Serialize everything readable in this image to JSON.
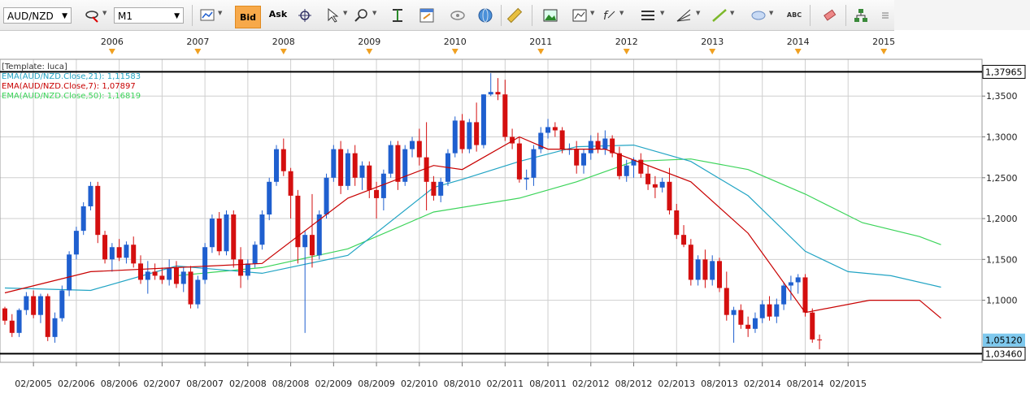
{
  "toolbar": {
    "symbol": "AUD/NZD",
    "timeframe": "M1",
    "bid_label": "Bid",
    "ask_label": "Ask",
    "abc_label": "ABC",
    "icons": [
      "chart-type-icon",
      "bid-ask-icon",
      "crosshair-icon",
      "cursor-icon",
      "zoom-icon",
      "center-icon",
      "template-icon",
      "eye-icon",
      "globe-icon",
      "ruler-icon",
      "picture-icon",
      "screenshot-icon",
      "indicator-icon",
      "levels-icon",
      "fibonacci-icon",
      "line-icon",
      "ellipse-icon",
      "text-icon",
      "eraser-icon",
      "tree-icon",
      "options-icon"
    ]
  },
  "colors": {
    "up": "#1f5fcf",
    "down": "#d40f0f",
    "ema21": "#22a4c4",
    "ema7": "#c80000",
    "ema50": "#3cd45a",
    "grid": "#cfcfcf",
    "price_label_bg": "#7fc9ee"
  },
  "chart_data": {
    "type": "candlestick",
    "template_label": "[Template: luca]",
    "legend": [
      {
        "name": "EMA(AUD/NZD.Close,21)",
        "value": "1,11583",
        "color": "#22a4c4"
      },
      {
        "name": "EMA(AUD/NZD.Close,7)",
        "value": "1,07897",
        "color": "#c80000"
      },
      {
        "name": "EMA(AUD/NZD.Close,50)",
        "value": "1,16819",
        "color": "#3cd45a"
      }
    ],
    "ylim": [
      1.024,
      1.395
    ],
    "yticks": [
      "1,3500",
      "1,3000",
      "1,2500",
      "1,2000",
      "1,1500",
      "1,1000"
    ],
    "ytick_values": [
      1.35,
      1.3,
      1.25,
      1.2,
      1.15,
      1.1
    ],
    "years": [
      "2006",
      "2007",
      "2008",
      "2009",
      "2010",
      "2011",
      "2012",
      "2013",
      "2014",
      "2015"
    ],
    "xticks": [
      "02/2005",
      "02/2006",
      "08/2006",
      "02/2007",
      "08/2007",
      "02/2008",
      "08/2008",
      "02/2009",
      "08/2009",
      "02/2010",
      "08/2010",
      "02/2011",
      "08/2011",
      "02/2012",
      "08/2012",
      "02/2013",
      "08/2013",
      "02/2014",
      "08/2014",
      "02/2015"
    ],
    "hlines": [
      {
        "value": 1.37965,
        "label": "1,37965"
      },
      {
        "value": 1.0346,
        "label": "1,03460"
      }
    ],
    "current_price": {
      "value": 1.0512,
      "label": "1,05120"
    },
    "candles": [
      [
        1.09,
        1.092,
        1.07,
        1.075
      ],
      [
        1.075,
        1.083,
        1.055,
        1.06
      ],
      [
        1.06,
        1.09,
        1.055,
        1.088
      ],
      [
        1.088,
        1.11,
        1.082,
        1.105
      ],
      [
        1.105,
        1.112,
        1.078,
        1.082
      ],
      [
        1.082,
        1.108,
        1.072,
        1.105
      ],
      [
        1.105,
        1.108,
        1.05,
        1.055
      ],
      [
        1.055,
        1.085,
        1.048,
        1.078
      ],
      [
        1.078,
        1.118,
        1.074,
        1.112
      ],
      [
        1.112,
        1.16,
        1.105,
        1.156
      ],
      [
        1.156,
        1.19,
        1.15,
        1.185
      ],
      [
        1.185,
        1.22,
        1.18,
        1.215
      ],
      [
        1.215,
        1.245,
        1.21,
        1.24
      ],
      [
        1.24,
        1.245,
        1.17,
        1.18
      ],
      [
        1.18,
        1.185,
        1.145,
        1.15
      ],
      [
        1.15,
        1.17,
        1.135,
        1.165
      ],
      [
        1.165,
        1.175,
        1.148,
        1.152
      ],
      [
        1.152,
        1.172,
        1.145,
        1.168
      ],
      [
        1.168,
        1.178,
        1.14,
        1.145
      ],
      [
        1.145,
        1.155,
        1.12,
        1.125
      ],
      [
        1.125,
        1.148,
        1.108,
        1.135
      ],
      [
        1.135,
        1.145,
        1.125,
        1.13
      ],
      [
        1.13,
        1.14,
        1.12,
        1.125
      ],
      [
        1.125,
        1.15,
        1.118,
        1.14
      ],
      [
        1.14,
        1.148,
        1.115,
        1.12
      ],
      [
        1.12,
        1.14,
        1.11,
        1.135
      ],
      [
        1.135,
        1.142,
        1.09,
        1.095
      ],
      [
        1.095,
        1.13,
        1.09,
        1.125
      ],
      [
        1.125,
        1.17,
        1.12,
        1.165
      ],
      [
        1.165,
        1.205,
        1.158,
        1.2
      ],
      [
        1.2,
        1.208,
        1.155,
        1.16
      ],
      [
        1.16,
        1.21,
        1.155,
        1.205
      ],
      [
        1.205,
        1.21,
        1.14,
        1.15
      ],
      [
        1.15,
        1.165,
        1.115,
        1.13
      ],
      [
        1.13,
        1.15,
        1.125,
        1.145
      ],
      [
        1.145,
        1.172,
        1.14,
        1.168
      ],
      [
        1.168,
        1.21,
        1.162,
        1.205
      ],
      [
        1.205,
        1.25,
        1.198,
        1.245
      ],
      [
        1.245,
        1.29,
        1.24,
        1.285
      ],
      [
        1.285,
        1.298,
        1.252,
        1.258
      ],
      [
        1.258,
        1.262,
        1.2,
        1.228
      ],
      [
        1.228,
        1.235,
        1.145,
        1.165
      ],
      [
        1.165,
        1.185,
        1.06,
        1.18
      ],
      [
        1.18,
        1.23,
        1.14,
        1.155
      ],
      [
        1.155,
        1.21,
        1.15,
        1.205
      ],
      [
        1.205,
        1.255,
        1.2,
        1.25
      ],
      [
        1.25,
        1.29,
        1.245,
        1.285
      ],
      [
        1.285,
        1.295,
        1.23,
        1.24
      ],
      [
        1.24,
        1.285,
        1.235,
        1.28
      ],
      [
        1.28,
        1.29,
        1.24,
        1.25
      ],
      [
        1.25,
        1.27,
        1.235,
        1.265
      ],
      [
        1.265,
        1.27,
        1.225,
        1.235
      ],
      [
        1.235,
        1.245,
        1.2,
        1.225
      ],
      [
        1.225,
        1.26,
        1.21,
        1.255
      ],
      [
        1.255,
        1.295,
        1.25,
        1.29
      ],
      [
        1.29,
        1.295,
        1.235,
        1.245
      ],
      [
        1.245,
        1.29,
        1.24,
        1.285
      ],
      [
        1.285,
        1.3,
        1.275,
        1.295
      ],
      [
        1.295,
        1.31,
        1.265,
        1.275
      ],
      [
        1.275,
        1.318,
        1.21,
        1.245
      ],
      [
        1.245,
        1.252,
        1.222,
        1.228
      ],
      [
        1.228,
        1.25,
        1.22,
        1.245
      ],
      [
        1.245,
        1.285,
        1.24,
        1.28
      ],
      [
        1.28,
        1.325,
        1.275,
        1.32
      ],
      [
        1.32,
        1.328,
        1.28,
        1.285
      ],
      [
        1.285,
        1.322,
        1.28,
        1.318
      ],
      [
        1.318,
        1.342,
        1.282,
        1.29
      ],
      [
        1.29,
        1.352,
        1.286,
        1.352
      ],
      [
        1.352,
        1.378,
        1.35,
        1.355
      ],
      [
        1.355,
        1.372,
        1.345,
        1.352
      ],
      [
        1.352,
        1.37,
        1.295,
        1.3
      ],
      [
        1.3,
        1.31,
        1.285,
        1.292
      ],
      [
        1.292,
        1.3,
        1.244,
        1.248
      ],
      [
        1.248,
        1.26,
        1.235,
        1.25
      ],
      [
        1.25,
        1.29,
        1.24,
        1.285
      ],
      [
        1.285,
        1.312,
        1.28,
        1.305
      ],
      [
        1.305,
        1.322,
        1.298,
        1.312
      ],
      [
        1.312,
        1.318,
        1.3,
        1.308
      ],
      [
        1.308,
        1.312,
        1.28,
        1.285
      ],
      [
        1.285,
        1.292,
        1.278,
        1.285
      ],
      [
        1.285,
        1.295,
        1.255,
        1.265
      ],
      [
        1.265,
        1.285,
        1.255,
        1.28
      ],
      [
        1.28,
        1.302,
        1.272,
        1.295
      ],
      [
        1.295,
        1.305,
        1.28,
        1.285
      ],
      [
        1.285,
        1.308,
        1.278,
        1.298
      ],
      [
        1.298,
        1.302,
        1.275,
        1.28
      ],
      [
        1.28,
        1.288,
        1.248,
        1.252
      ],
      [
        1.252,
        1.272,
        1.245,
        1.265
      ],
      [
        1.265,
        1.275,
        1.25,
        1.272
      ],
      [
        1.272,
        1.28,
        1.25,
        1.255
      ],
      [
        1.255,
        1.265,
        1.235,
        1.242
      ],
      [
        1.242,
        1.252,
        1.225,
        1.238
      ],
      [
        1.238,
        1.25,
        1.232,
        1.245
      ],
      [
        1.245,
        1.262,
        1.205,
        1.21
      ],
      [
        1.21,
        1.218,
        1.175,
        1.18
      ],
      [
        1.18,
        1.192,
        1.165,
        1.168
      ],
      [
        1.168,
        1.175,
        1.118,
        1.125
      ],
      [
        1.125,
        1.155,
        1.118,
        1.15
      ],
      [
        1.15,
        1.162,
        1.115,
        1.125
      ],
      [
        1.125,
        1.155,
        1.118,
        1.148
      ],
      [
        1.148,
        1.152,
        1.11,
        1.115
      ],
      [
        1.115,
        1.135,
        1.075,
        1.082
      ],
      [
        1.082,
        1.092,
        1.048,
        1.088
      ],
      [
        1.088,
        1.095,
        1.065,
        1.07
      ],
      [
        1.07,
        1.08,
        1.055,
        1.065
      ],
      [
        1.065,
        1.085,
        1.06,
        1.078
      ],
      [
        1.078,
        1.1,
        1.072,
        1.095
      ],
      [
        1.095,
        1.105,
        1.075,
        1.08
      ],
      [
        1.08,
        1.102,
        1.072,
        1.095
      ],
      [
        1.095,
        1.122,
        1.088,
        1.118
      ],
      [
        1.118,
        1.13,
        1.1,
        1.122
      ],
      [
        1.122,
        1.132,
        1.108,
        1.128
      ],
      [
        1.128,
        1.132,
        1.08,
        1.085
      ],
      [
        1.085,
        1.09,
        1.048,
        1.052
      ],
      [
        1.052,
        1.058,
        1.04,
        1.0512
      ]
    ],
    "ema7": [
      [
        0,
        1.109
      ],
      [
        12,
        1.135
      ],
      [
        24,
        1.14
      ],
      [
        36,
        1.145
      ],
      [
        48,
        1.225
      ],
      [
        60,
        1.265
      ],
      [
        64,
        1.26
      ],
      [
        72,
        1.3
      ],
      [
        76,
        1.285
      ],
      [
        84,
        1.285
      ],
      [
        96,
        1.245
      ],
      [
        104,
        1.182
      ],
      [
        112,
        1.085
      ],
      [
        121,
        1.1
      ],
      [
        128,
        1.1
      ],
      [
        131,
        1.078
      ]
    ],
    "ema21": [
      [
        0,
        1.115
      ],
      [
        12,
        1.112
      ],
      [
        24,
        1.142
      ],
      [
        36,
        1.133
      ],
      [
        48,
        1.155
      ],
      [
        60,
        1.238
      ],
      [
        64,
        1.248
      ],
      [
        72,
        1.27
      ],
      [
        80,
        1.288
      ],
      [
        88,
        1.29
      ],
      [
        96,
        1.27
      ],
      [
        104,
        1.228
      ],
      [
        112,
        1.16
      ],
      [
        118,
        1.135
      ],
      [
        124,
        1.13
      ],
      [
        131,
        1.116
      ]
    ],
    "ema50": [
      [
        24,
        1.13
      ],
      [
        36,
        1.14
      ],
      [
        48,
        1.163
      ],
      [
        60,
        1.208
      ],
      [
        72,
        1.225
      ],
      [
        80,
        1.245
      ],
      [
        88,
        1.27
      ],
      [
        96,
        1.273
      ],
      [
        104,
        1.26
      ],
      [
        112,
        1.23
      ],
      [
        120,
        1.195
      ],
      [
        128,
        1.178
      ],
      [
        131,
        1.168
      ]
    ]
  }
}
